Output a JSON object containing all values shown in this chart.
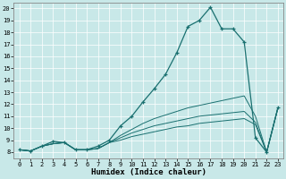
{
  "xlabel": "Humidex (Indice chaleur)",
  "bg_color": "#c8e8e8",
  "line_color": "#1a7070",
  "grid_color": "#ffffff",
  "xlim": [
    -0.5,
    23.5
  ],
  "ylim": [
    7.5,
    20.5
  ],
  "xticks": [
    0,
    1,
    2,
    3,
    4,
    5,
    6,
    7,
    8,
    9,
    10,
    11,
    12,
    13,
    14,
    15,
    16,
    17,
    18,
    19,
    20,
    21,
    22,
    23
  ],
  "yticks": [
    8,
    9,
    10,
    11,
    12,
    13,
    14,
    15,
    16,
    17,
    18,
    19,
    20
  ],
  "main_x": [
    0,
    1,
    2,
    3,
    4,
    5,
    6,
    7,
    8,
    9,
    10,
    11,
    12,
    13,
    14,
    15,
    16,
    17,
    18,
    19,
    20,
    21,
    22,
    23
  ],
  "main_y": [
    8.2,
    8.1,
    8.5,
    8.9,
    8.8,
    8.2,
    8.2,
    8.5,
    9.0,
    10.2,
    11.0,
    12.2,
    13.3,
    14.5,
    16.3,
    18.5,
    19.0,
    20.1,
    18.3,
    18.3,
    17.2,
    9.2,
    8.0,
    11.7
  ],
  "line2_y": [
    8.2,
    8.1,
    8.5,
    8.7,
    8.8,
    8.2,
    8.2,
    8.3,
    8.8,
    9.4,
    9.9,
    10.4,
    10.8,
    11.1,
    11.4,
    11.7,
    11.9,
    12.1,
    12.3,
    12.5,
    12.7,
    11.0,
    8.0,
    11.7
  ],
  "line3_y": [
    8.2,
    8.1,
    8.5,
    8.7,
    8.8,
    8.2,
    8.2,
    8.3,
    8.8,
    9.2,
    9.6,
    9.9,
    10.2,
    10.4,
    10.6,
    10.8,
    11.0,
    11.1,
    11.2,
    11.3,
    11.4,
    10.5,
    8.0,
    11.7
  ],
  "line4_y": [
    8.2,
    8.1,
    8.5,
    8.7,
    8.8,
    8.2,
    8.2,
    8.3,
    8.8,
    9.0,
    9.3,
    9.5,
    9.7,
    9.9,
    10.1,
    10.2,
    10.4,
    10.5,
    10.6,
    10.7,
    10.8,
    10.3,
    8.0,
    11.7
  ]
}
